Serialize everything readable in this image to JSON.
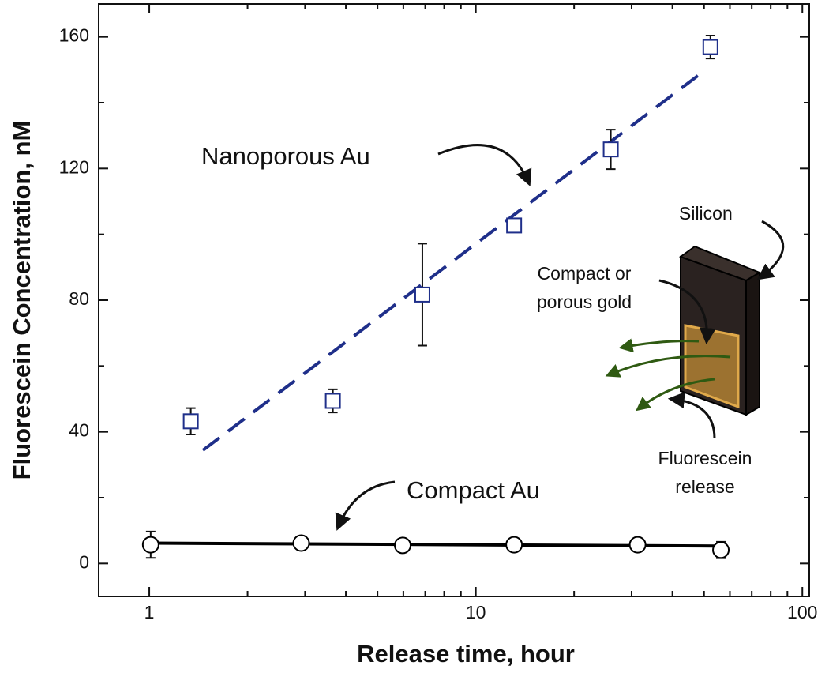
{
  "chart_data": {
    "type": "scatter",
    "x_label": "Release time, hour",
    "y_label": "Fluorescein Concentration, nM",
    "xscale": "log",
    "xlim": [
      0.7,
      105
    ],
    "xticks": [
      1,
      10,
      100
    ],
    "xminorticks": [
      2,
      3,
      4,
      5,
      6,
      7,
      8,
      9,
      20,
      30,
      40,
      50,
      60,
      70,
      80,
      90
    ],
    "ylim": [
      -10,
      170
    ],
    "yticks": [
      0,
      40,
      80,
      120,
      160
    ],
    "yminorticks": [
      20,
      60,
      100,
      140
    ],
    "series": [
      {
        "name": "Nanoporous Au",
        "marker": "square",
        "color": "#1f2f8a",
        "x": [
          1.34,
          3.65,
          6.86,
          13.1,
          25.9,
          52.3
        ],
        "values": [
          43.2,
          49.4,
          81.7,
          102.7,
          125.8,
          156.9
        ],
        "errors": [
          4,
          3.5,
          15.5,
          1,
          6,
          3.5
        ],
        "fit": {
          "x": [
            1.46,
            48.3
          ],
          "values": [
            34.4,
            148.5
          ],
          "dashed": true,
          "color": "#1f2f8a"
        }
      },
      {
        "name": "Compact Au",
        "marker": "circle",
        "color": "#000000",
        "x": [
          1.01,
          2.92,
          5.97,
          13.1,
          31.3,
          56.3
        ],
        "values": [
          5.7,
          6.2,
          5.5,
          5.7,
          5.7,
          4.1
        ],
        "errors": [
          4,
          0.5,
          0.5,
          0.5,
          0.5,
          2.5
        ],
        "fit": {
          "x": [
            1.0,
            54.3
          ],
          "values": [
            6.2,
            5.3
          ],
          "dashed": false,
          "color": "#000000"
        }
      }
    ],
    "inset_labels": [
      [
        "Silicon"
      ],
      [
        "Compact or",
        "porous gold"
      ],
      [
        "Fluorescein",
        "release"
      ]
    ]
  }
}
